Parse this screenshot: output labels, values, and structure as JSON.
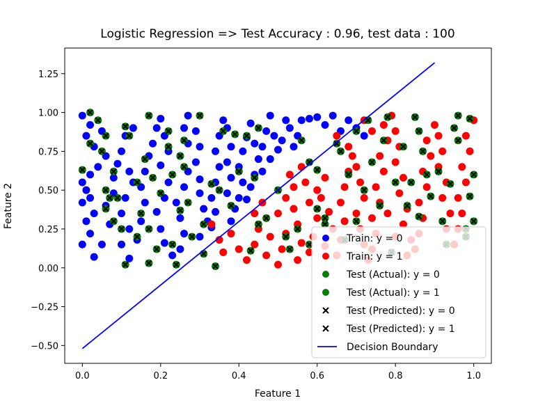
{
  "chart_data": {
    "type": "scatter",
    "title": "Logistic Regression => Test Accuracy : 0.96, test data : 100",
    "xlabel": "Feature 1",
    "ylabel": "Feature 2",
    "xlim": [
      -0.045,
      1.045
    ],
    "ylim": [
      -0.615,
      1.415
    ],
    "xticks": [
      0.0,
      0.2,
      0.4,
      0.6,
      0.8,
      1.0
    ],
    "xtick_labels": [
      "0.0",
      "0.2",
      "0.4",
      "0.6",
      "0.8",
      "1.0"
    ],
    "yticks": [
      -0.5,
      -0.25,
      0.0,
      0.25,
      0.5,
      0.75,
      1.0,
      1.25
    ],
    "ytick_labels": [
      "−0.50",
      "−0.25",
      "0.00",
      "0.25",
      "0.50",
      "0.75",
      "1.00",
      "1.25"
    ],
    "grid": false,
    "legend_position": "lower-right",
    "legend": [
      {
        "label": "Train: y = 0",
        "marker": "circle",
        "color": "#0000ff"
      },
      {
        "label": "Train: y = 1",
        "marker": "circle",
        "color": "#ff0000"
      },
      {
        "label": "Test (Actual): y = 0",
        "marker": "circle",
        "color": "#008000"
      },
      {
        "label": "Test (Actual): y = 1",
        "marker": "circle",
        "color": "#008000"
      },
      {
        "label": "Test (Predicted): y = 0",
        "marker": "x",
        "color": "#000000"
      },
      {
        "label": "Test (Predicted): y = 1",
        "marker": "x",
        "color": "#000000"
      },
      {
        "label": "Decision Boundary",
        "marker": "line",
        "color": "#0000ff"
      }
    ],
    "decision_boundary": {
      "x": [
        0.0,
        0.9
      ],
      "y": [
        -0.52,
        1.32
      ]
    },
    "train_y0": [
      [
        0.0,
        0.98
      ],
      [
        0.02,
        0.92
      ],
      [
        0.01,
        0.85
      ],
      [
        0.03,
        0.78
      ],
      [
        0.05,
        0.88
      ],
      [
        0.06,
        0.72
      ],
      [
        0.04,
        0.65
      ],
      [
        0.02,
        0.6
      ],
      [
        0.0,
        0.55
      ],
      [
        0.01,
        0.5
      ],
      [
        0.02,
        0.45
      ],
      [
        0.0,
        0.42
      ],
      [
        0.03,
        0.35
      ],
      [
        0.01,
        0.3
      ],
      [
        0.02,
        0.22
      ],
      [
        0.0,
        0.15
      ],
      [
        0.03,
        0.07
      ],
      [
        0.05,
        0.15
      ],
      [
        0.07,
        0.28
      ],
      [
        0.06,
        0.4
      ],
      [
        0.08,
        0.48
      ],
      [
        0.08,
        0.58
      ],
      [
        0.09,
        0.67
      ],
      [
        0.1,
        0.75
      ],
      [
        0.11,
        0.85
      ],
      [
        0.13,
        0.9
      ],
      [
        0.12,
        0.62
      ],
      [
        0.13,
        0.55
      ],
      [
        0.11,
        0.45
      ],
      [
        0.1,
        0.35
      ],
      [
        0.12,
        0.25
      ],
      [
        0.1,
        0.15
      ],
      [
        0.12,
        0.06
      ],
      [
        0.14,
        0.18
      ],
      [
        0.15,
        0.3
      ],
      [
        0.16,
        0.42
      ],
      [
        0.15,
        0.52
      ],
      [
        0.16,
        0.62
      ],
      [
        0.17,
        0.72
      ],
      [
        0.18,
        0.8
      ],
      [
        0.19,
        0.9
      ],
      [
        0.2,
        0.96
      ],
      [
        0.21,
        0.85
      ],
      [
        0.22,
        0.75
      ],
      [
        0.2,
        0.66
      ],
      [
        0.22,
        0.55
      ],
      [
        0.21,
        0.45
      ],
      [
        0.19,
        0.36
      ],
      [
        0.2,
        0.25
      ],
      [
        0.21,
        0.16
      ],
      [
        0.23,
        0.08
      ],
      [
        0.25,
        0.12
      ],
      [
        0.26,
        0.22
      ],
      [
        0.25,
        0.32
      ],
      [
        0.24,
        0.42
      ],
      [
        0.26,
        0.52
      ],
      [
        0.27,
        0.62
      ],
      [
        0.25,
        0.72
      ],
      [
        0.27,
        0.8
      ],
      [
        0.26,
        0.9
      ],
      [
        0.27,
        0.98
      ],
      [
        0.29,
        0.88
      ],
      [
        0.3,
        0.78
      ],
      [
        0.29,
        0.68
      ],
      [
        0.3,
        0.57
      ],
      [
        0.3,
        0.48
      ],
      [
        0.31,
        0.38
      ],
      [
        0.32,
        0.3
      ],
      [
        0.3,
        0.2
      ],
      [
        0.33,
        0.26
      ],
      [
        0.34,
        0.36
      ],
      [
        0.33,
        0.45
      ],
      [
        0.34,
        0.55
      ],
      [
        0.35,
        0.65
      ],
      [
        0.34,
        0.75
      ],
      [
        0.35,
        0.85
      ],
      [
        0.36,
        0.95
      ],
      [
        0.37,
        0.9
      ],
      [
        0.38,
        0.78
      ],
      [
        0.37,
        0.68
      ],
      [
        0.38,
        0.58
      ],
      [
        0.37,
        0.48
      ],
      [
        0.39,
        0.38
      ],
      [
        0.4,
        0.45
      ],
      [
        0.41,
        0.55
      ],
      [
        0.4,
        0.65
      ],
      [
        0.41,
        0.75
      ],
      [
        0.42,
        0.84
      ],
      [
        0.43,
        0.93
      ],
      [
        0.44,
        0.8
      ],
      [
        0.45,
        0.7
      ],
      [
        0.44,
        0.6
      ],
      [
        0.46,
        0.78
      ],
      [
        0.47,
        0.88
      ],
      [
        0.48,
        0.98
      ],
      [
        0.49,
        0.85
      ],
      [
        0.5,
        0.76
      ],
      [
        0.52,
        0.95
      ],
      [
        0.51,
        0.82
      ],
      [
        0.53,
        0.9
      ],
      [
        0.54,
        0.78
      ],
      [
        0.56,
        0.95
      ],
      [
        0.55,
        0.85
      ],
      [
        0.58,
        0.96
      ],
      [
        0.6,
        0.97
      ],
      [
        0.62,
        0.92
      ],
      [
        0.64,
        0.98
      ],
      [
        0.66,
        0.88
      ],
      [
        0.68,
        0.95
      ],
      [
        0.7,
        0.9
      ],
      [
        0.72,
        0.85
      ],
      [
        0.46,
        0.62
      ],
      [
        0.48,
        0.7
      ],
      [
        0.43,
        0.52
      ],
      [
        0.42,
        0.44
      ],
      [
        0.38,
        0.3
      ]
    ],
    "train_y1": [
      [
        0.33,
        0.28
      ],
      [
        0.35,
        0.18
      ],
      [
        0.36,
        0.1
      ],
      [
        0.38,
        0.22
      ],
      [
        0.4,
        0.12
      ],
      [
        0.42,
        0.05
      ],
      [
        0.44,
        0.15
      ],
      [
        0.45,
        0.25
      ],
      [
        0.44,
        0.35
      ],
      [
        0.46,
        0.42
      ],
      [
        0.47,
        0.32
      ],
      [
        0.48,
        0.2
      ],
      [
        0.47,
        0.08
      ],
      [
        0.5,
        0.02
      ],
      [
        0.51,
        0.12
      ],
      [
        0.52,
        0.22
      ],
      [
        0.5,
        0.35
      ],
      [
        0.52,
        0.45
      ],
      [
        0.54,
        0.38
      ],
      [
        0.55,
        0.28
      ],
      [
        0.56,
        0.16
      ],
      [
        0.55,
        0.05
      ],
      [
        0.58,
        0.1
      ],
      [
        0.59,
        0.2
      ],
      [
        0.6,
        0.32
      ],
      [
        0.58,
        0.42
      ],
      [
        0.6,
        0.5
      ],
      [
        0.62,
        0.58
      ],
      [
        0.61,
        0.45
      ],
      [
        0.63,
        0.36
      ],
      [
        0.64,
        0.25
      ],
      [
        0.62,
        0.14
      ],
      [
        0.65,
        0.08
      ],
      [
        0.66,
        0.18
      ],
      [
        0.67,
        0.3
      ],
      [
        0.66,
        0.42
      ],
      [
        0.67,
        0.52
      ],
      [
        0.68,
        0.62
      ],
      [
        0.69,
        0.72
      ],
      [
        0.7,
        0.65
      ],
      [
        0.71,
        0.55
      ],
      [
        0.72,
        0.45
      ],
      [
        0.7,
        0.35
      ],
      [
        0.71,
        0.25
      ],
      [
        0.72,
        0.15
      ],
      [
        0.73,
        0.05
      ],
      [
        0.74,
        0.12
      ],
      [
        0.75,
        0.22
      ],
      [
        0.74,
        0.32
      ],
      [
        0.76,
        0.42
      ],
      [
        0.75,
        0.52
      ],
      [
        0.77,
        0.62
      ],
      [
        0.76,
        0.72
      ],
      [
        0.78,
        0.82
      ],
      [
        0.77,
        0.92
      ],
      [
        0.79,
        0.98
      ],
      [
        0.8,
        0.88
      ],
      [
        0.81,
        0.78
      ],
      [
        0.8,
        0.68
      ],
      [
        0.82,
        0.58
      ],
      [
        0.81,
        0.48
      ],
      [
        0.83,
        0.38
      ],
      [
        0.82,
        0.28
      ],
      [
        0.84,
        0.18
      ],
      [
        0.83,
        0.08
      ],
      [
        0.85,
        0.12
      ],
      [
        0.86,
        0.22
      ],
      [
        0.87,
        0.32
      ],
      [
        0.86,
        0.42
      ],
      [
        0.88,
        0.52
      ],
      [
        0.87,
        0.62
      ],
      [
        0.89,
        0.72
      ],
      [
        0.88,
        0.82
      ],
      [
        0.9,
        0.92
      ],
      [
        0.91,
        0.85
      ],
      [
        0.92,
        0.75
      ],
      [
        0.91,
        0.65
      ],
      [
        0.93,
        0.55
      ],
      [
        0.92,
        0.45
      ],
      [
        0.94,
        0.35
      ],
      [
        0.93,
        0.25
      ],
      [
        0.95,
        0.15
      ],
      [
        0.96,
        0.25
      ],
      [
        0.97,
        0.35
      ],
      [
        0.96,
        0.45
      ],
      [
        0.98,
        0.55
      ],
      [
        0.97,
        0.65
      ],
      [
        0.99,
        0.75
      ],
      [
        0.98,
        0.85
      ],
      [
        1.0,
        0.95
      ],
      [
        0.65,
        0.85
      ],
      [
        0.68,
        0.78
      ],
      [
        0.72,
        0.95
      ],
      [
        0.74,
        0.88
      ],
      [
        0.57,
        0.55
      ],
      [
        0.56,
        0.65
      ],
      [
        0.54,
        0.52
      ],
      [
        0.53,
        0.6
      ],
      [
        0.78,
        0.35
      ],
      [
        0.8,
        0.2
      ]
    ],
    "test_predicted": [
      [
        0.0,
        0.63
      ],
      [
        0.02,
        1.0
      ],
      [
        0.02,
        0.8
      ],
      [
        0.04,
        0.95
      ],
      [
        0.05,
        0.75
      ],
      [
        0.06,
        0.85
      ],
      [
        0.06,
        0.5
      ],
      [
        0.07,
        0.45
      ],
      [
        0.06,
        0.38
      ],
      [
        0.08,
        0.62
      ],
      [
        0.08,
        0.3
      ],
      [
        0.1,
        0.25
      ],
      [
        0.11,
        0.91
      ],
      [
        0.11,
        0.02
      ],
      [
        0.12,
        0.85
      ],
      [
        0.14,
        0.55
      ],
      [
        0.15,
        0.35
      ],
      [
        0.16,
        0.7
      ],
      [
        0.17,
        0.98
      ],
      [
        0.17,
        0.25
      ],
      [
        0.17,
        0.03
      ],
      [
        0.19,
        0.12
      ],
      [
        0.2,
        0.48
      ],
      [
        0.22,
        0.88
      ],
      [
        0.22,
        0.78
      ],
      [
        0.23,
        0.6
      ],
      [
        0.23,
        0.15
      ],
      [
        0.24,
        0.02
      ],
      [
        0.25,
        0.72
      ],
      [
        0.25,
        0.37
      ],
      [
        0.26,
        0.82
      ],
      [
        0.27,
        0.42
      ],
      [
        0.28,
        0.2
      ],
      [
        0.3,
        0.98
      ],
      [
        0.31,
        0.09
      ],
      [
        0.31,
        0.28
      ],
      [
        0.33,
        0.54
      ],
      [
        0.34,
        0.01
      ],
      [
        0.35,
        0.5
      ],
      [
        0.38,
        0.4
      ],
      [
        0.39,
        0.86
      ],
      [
        0.4,
        0.62
      ],
      [
        0.42,
        0.85
      ],
      [
        0.43,
        0.11
      ],
      [
        0.45,
        0.9
      ],
      [
        0.45,
        0.28
      ],
      [
        0.47,
        0.32
      ],
      [
        0.5,
        0.5
      ],
      [
        0.52,
        0.2
      ],
      [
        0.53,
        0.12
      ],
      [
        0.55,
        0.25
      ],
      [
        0.56,
        0.82
      ],
      [
        0.58,
        0.68
      ],
      [
        0.6,
        0.38
      ],
      [
        0.6,
        0.63
      ],
      [
        0.62,
        0.32
      ],
      [
        0.65,
        0.8
      ],
      [
        0.66,
        0.75
      ],
      [
        0.67,
        0.18
      ],
      [
        0.68,
        0.6
      ],
      [
        0.7,
        0.88
      ],
      [
        0.7,
        0.3
      ],
      [
        0.72,
        0.5
      ],
      [
        0.73,
        0.95
      ],
      [
        0.74,
        0.68
      ],
      [
        0.77,
        0.82
      ],
      [
        0.78,
        0.97
      ],
      [
        0.79,
        0.1
      ],
      [
        0.8,
        0.55
      ],
      [
        0.82,
        0.78
      ],
      [
        0.83,
        0.4
      ],
      [
        0.84,
        0.55
      ],
      [
        0.85,
        0.97
      ],
      [
        0.86,
        0.88
      ],
      [
        0.87,
        0.75
      ],
      [
        0.88,
        0.6
      ],
      [
        0.89,
        0.46
      ],
      [
        0.91,
        0.62
      ],
      [
        0.92,
        0.3
      ],
      [
        0.93,
        0.15
      ],
      [
        0.94,
        0.54
      ],
      [
        0.95,
        0.9
      ],
      [
        0.96,
        0.98
      ],
      [
        0.96,
        0.82
      ],
      [
        0.98,
        0.25
      ],
      [
        0.98,
        0.2
      ],
      [
        0.99,
        0.96
      ],
      [
        0.99,
        0.46
      ],
      [
        1.0,
        0.6
      ],
      [
        1.0,
        0.3
      ],
      [
        0.18,
        0.58
      ],
      [
        0.09,
        0.45
      ],
      [
        0.14,
        0.2
      ],
      [
        0.26,
        0.65
      ],
      [
        0.36,
        0.88
      ],
      [
        0.44,
        0.58
      ],
      [
        0.62,
        0.28
      ],
      [
        0.76,
        0.4
      ],
      [
        0.86,
        0.33
      ],
      [
        0.58,
        0.15
      ]
    ]
  }
}
